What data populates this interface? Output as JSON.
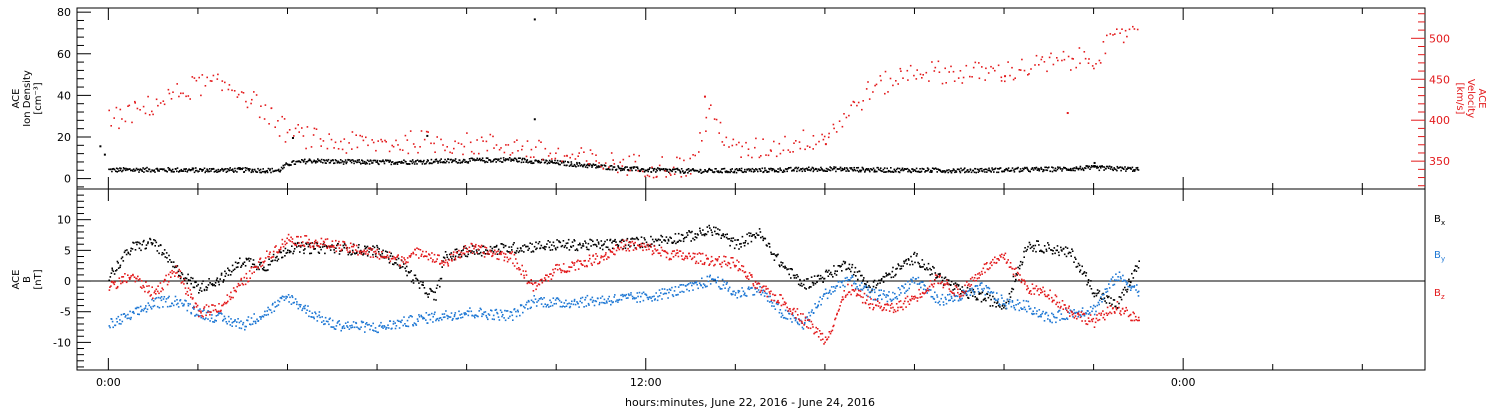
{
  "colors": {
    "black": "#000000",
    "red": "#e31a1c",
    "blue": "#1f78d4"
  },
  "chart_data": [
    {
      "type": "scatter",
      "panel": "top",
      "left_axis": {
        "label_lines": [
          "ACE",
          "Ion Density",
          "[cm⁻³]"
        ],
        "ylim": [
          -5,
          82
        ],
        "ticks": [
          0,
          20,
          40,
          60,
          80
        ],
        "minor_step": 4,
        "color": "#000000"
      },
      "right_axis": {
        "label_lines": [
          "ACE",
          "Velocity",
          "[km/s]"
        ],
        "ylim": [
          316,
          537
        ],
        "ticks": [
          350,
          400,
          450,
          500
        ],
        "minor_step": 10,
        "color": "#e31a1c"
      },
      "series": [
        {
          "axis": "left",
          "color": "#000000",
          "points": [
            [
              0.0,
              4.5
            ],
            [
              1.0,
              4.6
            ],
            [
              2.0,
              4.4
            ],
            [
              3.0,
              4.5
            ],
            [
              3.8,
              4.2
            ],
            [
              4.0,
              7.5
            ],
            [
              4.5,
              9.0
            ],
            [
              5.0,
              8.5
            ],
            [
              6.0,
              8.2
            ],
            [
              7.0,
              8.5
            ],
            [
              8.0,
              9.0
            ],
            [
              9.0,
              9.5
            ],
            [
              10.0,
              8.0
            ],
            [
              11.0,
              6.0
            ],
            [
              12.0,
              4.5
            ],
            [
              13.0,
              4.0
            ],
            [
              14.0,
              4.2
            ],
            [
              15.0,
              4.5
            ],
            [
              16.0,
              5.0
            ],
            [
              17.0,
              4.6
            ],
            [
              18.0,
              4.4
            ],
            [
              19.0,
              4.3
            ],
            [
              20.0,
              4.5
            ],
            [
              21.0,
              4.8
            ],
            [
              22.0,
              5.5
            ],
            [
              23.0,
              4.8
            ]
          ],
          "outliers": [
            [
              9.5,
              77
            ],
            [
              9.5,
              29
            ],
            [
              -0.2,
              16
            ],
            [
              -0.1,
              12
            ],
            [
              4.1,
              20
            ],
            [
              7.1,
              21
            ],
            [
              22.0,
              8
            ]
          ]
        },
        {
          "axis": "right",
          "color": "#e31a1c",
          "points": [
            [
              0.0,
              400
            ],
            [
              1.0,
              420
            ],
            [
              2.0,
              445
            ],
            [
              2.7,
              442
            ],
            [
              3.0,
              435
            ],
            [
              3.5,
              410
            ],
            [
              4.0,
              385
            ],
            [
              5.0,
              373
            ],
            [
              6.0,
              372
            ],
            [
              7.0,
              375
            ],
            [
              8.0,
              372
            ],
            [
              9.0,
              370
            ],
            [
              10.0,
              358
            ],
            [
              11.0,
              350
            ],
            [
              12.0,
              345
            ],
            [
              13.0,
              344
            ],
            [
              13.4,
              410
            ],
            [
              14.0,
              362
            ],
            [
              15.0,
              370
            ],
            [
              16.0,
              382
            ],
            [
              17.0,
              438
            ],
            [
              18.0,
              462
            ],
            [
              19.0,
              458
            ],
            [
              20.0,
              460
            ],
            [
              21.0,
              470
            ],
            [
              22.0,
              478
            ],
            [
              23.0,
              520
            ]
          ],
          "outliers": [
            [
              13.3,
              430
            ],
            [
              16.0,
              372
            ],
            [
              21.4,
              410
            ],
            [
              20.0,
              455
            ]
          ]
        }
      ]
    },
    {
      "type": "line",
      "panel": "bottom",
      "axis": {
        "label_lines": [
          "ACE",
          "B",
          "[nT]"
        ],
        "ylim": [
          -14.5,
          15
        ],
        "ticks": [
          -10,
          -5,
          0,
          5,
          10
        ],
        "minor_step": 1
      },
      "zero_line": true,
      "series": [
        {
          "name": "B",
          "sub": "x",
          "color": "#000000",
          "points": [
            [
              0.0,
              1.0
            ],
            [
              0.5,
              5.5
            ],
            [
              1.0,
              6.5
            ],
            [
              1.5,
              2.0
            ],
            [
              2.0,
              -1.0
            ],
            [
              2.5,
              0.5
            ],
            [
              3.0,
              3.5
            ],
            [
              3.5,
              2.5
            ],
            [
              4.0,
              5.5
            ],
            [
              5.0,
              5.5
            ],
            [
              6.0,
              5.0
            ],
            [
              6.5,
              3.0
            ],
            [
              7.0,
              -1.0
            ],
            [
              7.3,
              -2.5
            ],
            [
              7.5,
              4.0
            ],
            [
              8.0,
              5.0
            ],
            [
              9.0,
              5.5
            ],
            [
              10.0,
              6.0
            ],
            [
              11.0,
              6.0
            ],
            [
              12.0,
              6.5
            ],
            [
              12.5,
              7.0
            ],
            [
              13.0,
              7.5
            ],
            [
              13.5,
              8.5
            ],
            [
              14.0,
              6.0
            ],
            [
              14.5,
              8.0
            ],
            [
              15.0,
              3.0
            ],
            [
              15.5,
              -0.5
            ],
            [
              16.0,
              1.0
            ],
            [
              16.5,
              3.0
            ],
            [
              17.0,
              -1.0
            ],
            [
              17.5,
              1.5
            ],
            [
              18.0,
              4.0
            ],
            [
              18.5,
              1.0
            ],
            [
              19.0,
              -1.5
            ],
            [
              19.5,
              -2.5
            ],
            [
              20.0,
              -4.0
            ],
            [
              20.5,
              6.0
            ],
            [
              21.0,
              5.5
            ],
            [
              21.5,
              4.5
            ],
            [
              22.0,
              -1.5
            ],
            [
              22.5,
              -4.0
            ],
            [
              23.0,
              3.0
            ]
          ]
        },
        {
          "name": "B",
          "sub": "y",
          "color": "#1f78d4",
          "points": [
            [
              0.0,
              -7.0
            ],
            [
              0.5,
              -5.5
            ],
            [
              1.0,
              -3.5
            ],
            [
              1.5,
              -3.0
            ],
            [
              2.0,
              -5.0
            ],
            [
              2.5,
              -6.0
            ],
            [
              3.0,
              -7.0
            ],
            [
              3.5,
              -5.0
            ],
            [
              4.0,
              -2.5
            ],
            [
              4.5,
              -5.0
            ],
            [
              5.0,
              -7.0
            ],
            [
              6.0,
              -7.5
            ],
            [
              7.0,
              -6.0
            ],
            [
              8.0,
              -5.0
            ],
            [
              9.0,
              -5.5
            ],
            [
              9.5,
              -3.0
            ],
            [
              10.0,
              -3.5
            ],
            [
              11.0,
              -3.0
            ],
            [
              12.0,
              -2.5
            ],
            [
              13.0,
              -1.0
            ],
            [
              13.5,
              0.5
            ],
            [
              14.0,
              -2.0
            ],
            [
              14.5,
              -1.0
            ],
            [
              15.0,
              -5.0
            ],
            [
              15.5,
              -7.0
            ],
            [
              16.0,
              -2.0
            ],
            [
              16.5,
              0.5
            ],
            [
              17.0,
              -2.0
            ],
            [
              17.5,
              -2.5
            ],
            [
              18.0,
              0.5
            ],
            [
              18.5,
              -3.0
            ],
            [
              19.0,
              -2.5
            ],
            [
              19.5,
              -1.0
            ],
            [
              20.0,
              -3.5
            ],
            [
              20.5,
              -4.0
            ],
            [
              21.0,
              -6.0
            ],
            [
              21.5,
              -5.0
            ],
            [
              22.0,
              -4.5
            ],
            [
              22.5,
              1.0
            ],
            [
              23.0,
              -1.5
            ]
          ]
        },
        {
          "name": "B",
          "sub": "z",
          "color": "#e31a1c",
          "points": [
            [
              0.0,
              -1.0
            ],
            [
              0.5,
              1.0
            ],
            [
              1.0,
              -2.0
            ],
            [
              1.5,
              2.0
            ],
            [
              2.0,
              -5.0
            ],
            [
              2.5,
              -4.0
            ],
            [
              3.0,
              0.0
            ],
            [
              3.5,
              4.0
            ],
            [
              4.0,
              7.0
            ],
            [
              5.0,
              6.0
            ],
            [
              6.0,
              4.5
            ],
            [
              6.5,
              3.5
            ],
            [
              7.0,
              5.0
            ],
            [
              7.5,
              3.0
            ],
            [
              8.0,
              5.5
            ],
            [
              9.0,
              4.0
            ],
            [
              9.5,
              -1.0
            ],
            [
              10.0,
              2.0
            ],
            [
              11.0,
              4.0
            ],
            [
              11.5,
              6.0
            ],
            [
              12.0,
              5.5
            ],
            [
              12.5,
              4.5
            ],
            [
              13.0,
              4.0
            ],
            [
              13.5,
              3.5
            ],
            [
              14.0,
              3.0
            ],
            [
              14.5,
              -1.0
            ],
            [
              15.0,
              -3.0
            ],
            [
              15.5,
              -6.0
            ],
            [
              16.0,
              -9.5
            ],
            [
              16.5,
              -1.0
            ],
            [
              17.0,
              -3.5
            ],
            [
              17.5,
              -4.5
            ],
            [
              18.0,
              -2.5
            ],
            [
              18.5,
              0.5
            ],
            [
              19.0,
              -2.0
            ],
            [
              19.5,
              2.0
            ],
            [
              20.0,
              4.0
            ],
            [
              20.5,
              -1.0
            ],
            [
              21.0,
              -2.0
            ],
            [
              21.5,
              -5.0
            ],
            [
              22.0,
              -6.5
            ],
            [
              22.5,
              -4.0
            ],
            [
              23.0,
              -6.5
            ]
          ]
        }
      ]
    }
  ],
  "x_axis": {
    "label": "hours:minutes, June 22, 2016 - June 24, 2016",
    "xlim": [
      -0.7,
      29.4
    ],
    "ticks": [
      {
        "x": 0,
        "label": "0:00"
      },
      {
        "x": 12,
        "label": "12:00"
      },
      {
        "x": 24,
        "label": "0:00"
      }
    ],
    "minor_step": 2
  }
}
